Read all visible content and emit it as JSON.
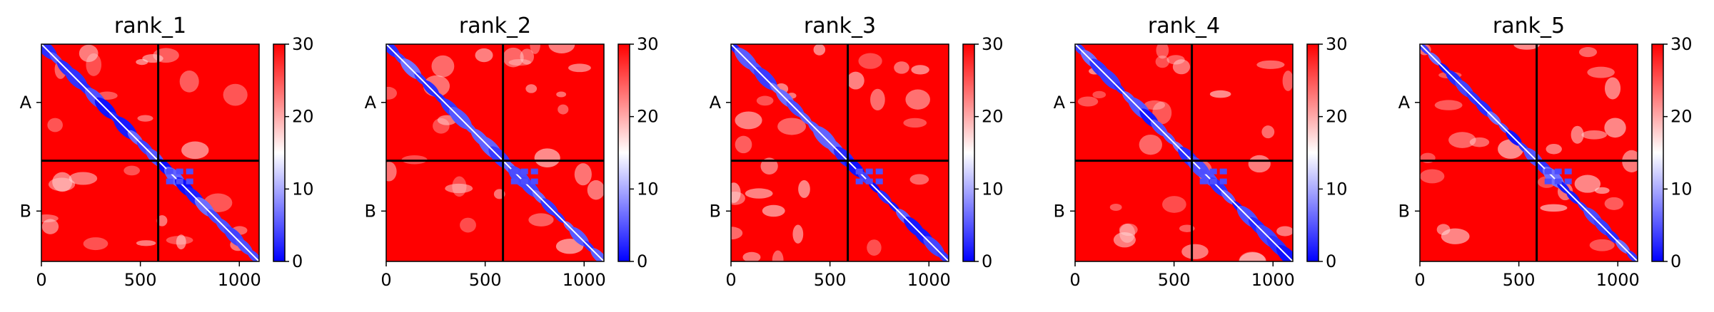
{
  "figure": {
    "panel_count": 5
  },
  "chart_data": [
    {
      "type": "heatmap",
      "title": "rank_1",
      "xlabel": "",
      "ylabel": "",
      "x_ticks": [
        0,
        500,
        1000
      ],
      "xlim": [
        0,
        1100
      ],
      "chain_boundary": 590,
      "chain_labels": [
        "A",
        "B"
      ],
      "colorbar": {
        "min": 0,
        "max": 30,
        "ticks": [
          0,
          10,
          20,
          30
        ]
      },
      "colormap": [
        "#0000ff",
        "#ffffff",
        "#ff0000"
      ]
    },
    {
      "type": "heatmap",
      "title": "rank_2",
      "xlabel": "",
      "ylabel": "",
      "x_ticks": [
        0,
        500,
        1000
      ],
      "xlim": [
        0,
        1100
      ],
      "chain_boundary": 590,
      "chain_labels": [
        "A",
        "B"
      ],
      "colorbar": {
        "min": 0,
        "max": 30,
        "ticks": [
          0,
          10,
          20,
          30
        ]
      },
      "colormap": [
        "#0000ff",
        "#ffffff",
        "#ff0000"
      ]
    },
    {
      "type": "heatmap",
      "title": "rank_3",
      "xlabel": "",
      "ylabel": "",
      "x_ticks": [
        0,
        500,
        1000
      ],
      "xlim": [
        0,
        1100
      ],
      "chain_boundary": 590,
      "chain_labels": [
        "A",
        "B"
      ],
      "colorbar": {
        "min": 0,
        "max": 30,
        "ticks": [
          0,
          10,
          20,
          30
        ]
      },
      "colormap": [
        "#0000ff",
        "#ffffff",
        "#ff0000"
      ]
    },
    {
      "type": "heatmap",
      "title": "rank_4",
      "xlabel": "",
      "ylabel": "",
      "x_ticks": [
        0,
        500,
        1000
      ],
      "xlim": [
        0,
        1100
      ],
      "chain_boundary": 590,
      "chain_labels": [
        "A",
        "B"
      ],
      "colorbar": {
        "min": 0,
        "max": 30,
        "ticks": [
          0,
          10,
          20,
          30
        ]
      },
      "colormap": [
        "#0000ff",
        "#ffffff",
        "#ff0000"
      ]
    },
    {
      "type": "heatmap",
      "title": "rank_5",
      "xlabel": "",
      "ylabel": "",
      "x_ticks": [
        0,
        500,
        1000
      ],
      "xlim": [
        0,
        1100
      ],
      "chain_boundary": 590,
      "chain_labels": [
        "A",
        "B"
      ],
      "colorbar": {
        "min": 0,
        "max": 30,
        "ticks": [
          0,
          10,
          20,
          30
        ]
      },
      "colormap": [
        "#0000ff",
        "#ffffff",
        "#ff0000"
      ]
    }
  ]
}
